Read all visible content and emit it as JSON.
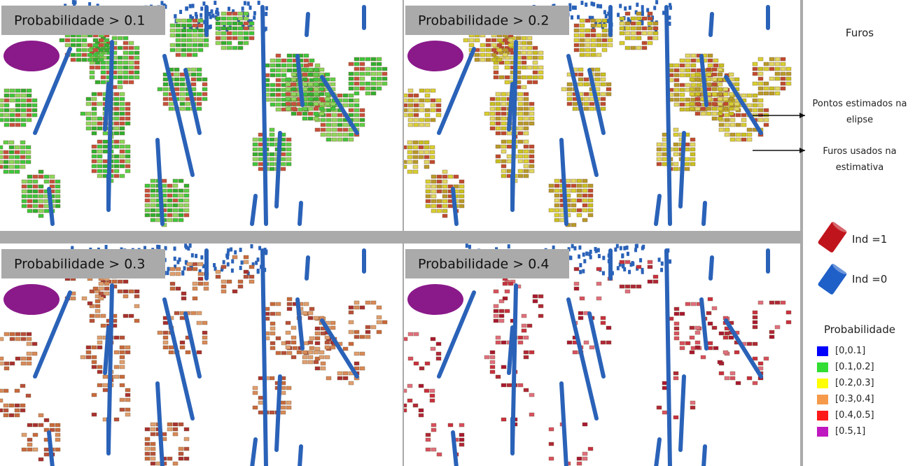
{
  "panels": [
    {
      "title": "Probabilidade > 0.1"
    },
    {
      "title": "Probabilidade > 0.2"
    },
    {
      "title": "Probabilidade > 0.3"
    },
    {
      "title": "Probabilidade > 0.4"
    }
  ],
  "legend": {
    "title": "Furos",
    "annotations": [
      "Pontos estimados na elipse",
      "Furos usados na estimativa"
    ],
    "indicators": [
      {
        "label": "Ind =1",
        "color": "#c0141c"
      },
      {
        "label": "Ind =0",
        "color": "#1f5fc8"
      }
    ],
    "probability_title": "Probabilidade",
    "classes": [
      {
        "label": "[0,0.1]",
        "color": "#0000ff"
      },
      {
        "label": "[0.1,0.2]",
        "color": "#33dd33"
      },
      {
        "label": "[0.2,0.3]",
        "color": "#ffff00"
      },
      {
        "label": "[0.3,0.4]",
        "color": "#f59a4a"
      },
      {
        "label": "[0.4,0.5]",
        "color": "#ff1a1a"
      },
      {
        "label": "[0.5,1]",
        "color": "#c018c0"
      }
    ]
  }
}
